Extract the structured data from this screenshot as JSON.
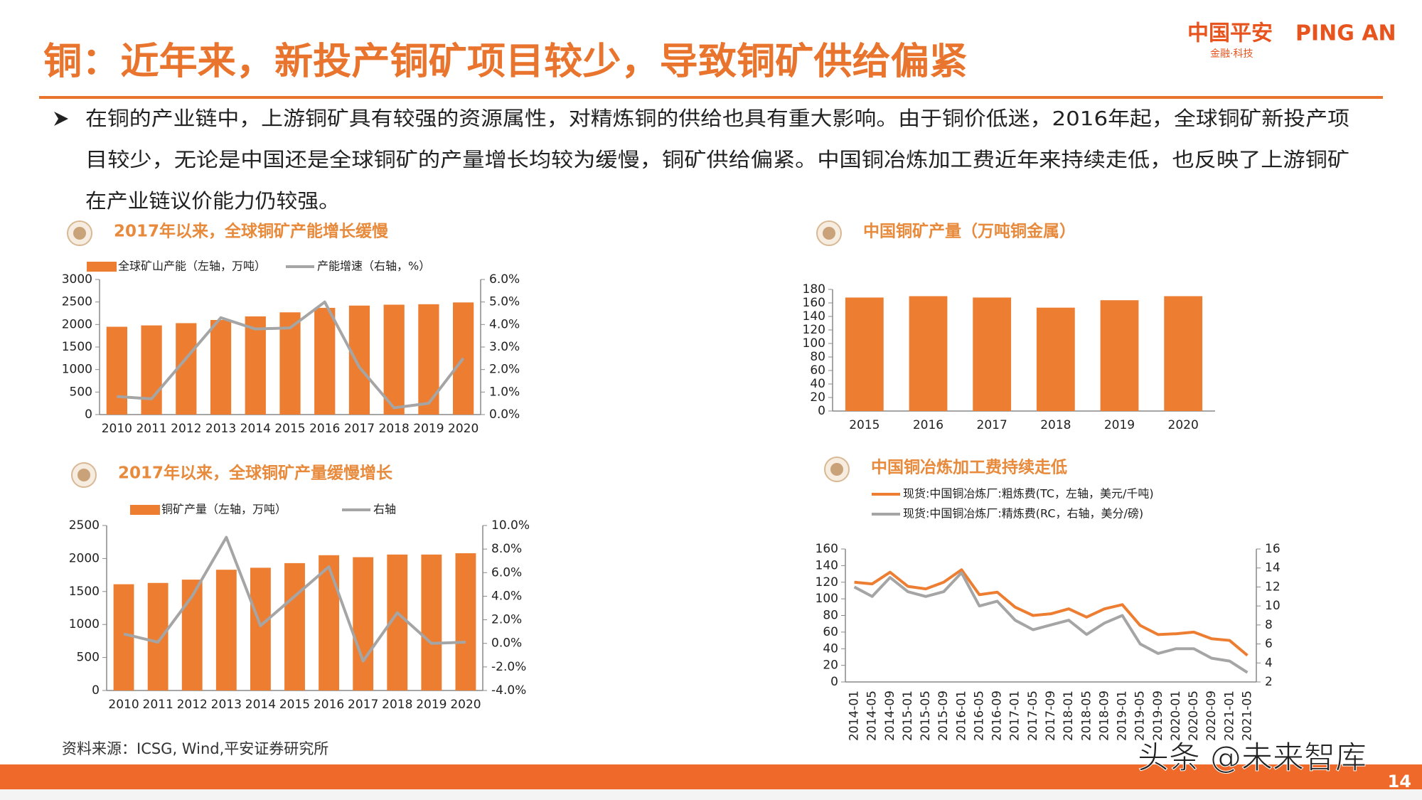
{
  "header": {
    "title": "铜：近年来，新投产铜矿项目较少，导致铜矿供给偏紧",
    "logo_cn": "中国平安",
    "logo_en": "PING AN",
    "logo_sub": "金融·科技"
  },
  "paragraph": {
    "lines": [
      "在铜的产业链中，上游铜矿具有较强的资源属性，对精炼铜的供给也具有重大影响。由于铜价低迷，2016年起，全球铜矿新投产项",
      "目较少，无论是中国还是全球铜矿的产量增长均较为缓慢，铜矿供给偏紧。中国铜冶炼加工费近年来持续走低，也反映了上游铜矿",
      "在产业链议价能力仍较强。"
    ]
  },
  "chart_data": [
    {
      "type": "bar",
      "title": "2017年以来，全球铜矿产能增长缓慢",
      "categories": [
        "2010",
        "2011",
        "2012",
        "2013",
        "2014",
        "2015",
        "2016",
        "2017",
        "2018",
        "2019",
        "2020"
      ],
      "series": [
        {
          "name": "全球矿山产能（左轴，万吨）",
          "color": "#ed7d31",
          "values": [
            1950,
            1980,
            2030,
            2100,
            2180,
            2270,
            2370,
            2420,
            2440,
            2450,
            2490
          ]
        },
        {
          "name": "产能增速（右轴，%）",
          "color": "#a5a5a5",
          "type": "line",
          "axis": "y2",
          "values": [
            0.8,
            0.7,
            2.5,
            4.3,
            3.8,
            3.85,
            5.0,
            2.1,
            0.3,
            0.5,
            2.5
          ]
        }
      ],
      "ylim": [
        0,
        3000
      ],
      "yticks": [
        0,
        500,
        1000,
        1500,
        2000,
        2500,
        3000
      ],
      "y2lim": [
        0,
        6
      ],
      "y2ticks": [
        {
          "value": 0,
          "label": "0.0%"
        },
        {
          "value": 1,
          "label": "1.0%"
        },
        {
          "value": 2,
          "label": "2.0%"
        },
        {
          "value": 3,
          "label": "3.0%"
        },
        {
          "value": 4,
          "label": "4.0%"
        },
        {
          "value": 5,
          "label": "5.0%"
        },
        {
          "value": 6,
          "label": "6.0%"
        }
      ]
    },
    {
      "type": "bar",
      "title": "中国铜矿产量（万吨铜金属）",
      "categories": [
        "2015",
        "2016",
        "2017",
        "2018",
        "2019",
        "2020"
      ],
      "values": [
        168,
        170,
        168,
        153,
        164,
        170
      ],
      "color": "#ed7d31",
      "ylim": [
        0,
        180
      ],
      "yticks": [
        0,
        20,
        40,
        60,
        80,
        100,
        120,
        140,
        160,
        180
      ]
    },
    {
      "type": "bar",
      "title": "2017年以来，全球铜矿产量缓慢增长",
      "categories": [
        "2010",
        "2011",
        "2012",
        "2013",
        "2014",
        "2015",
        "2016",
        "2017",
        "2018",
        "2019",
        "2020"
      ],
      "series": [
        {
          "name": "铜矿产量（左轴，万吨）",
          "color": "#ed7d31",
          "values": [
            1610,
            1630,
            1680,
            1830,
            1860,
            1930,
            2050,
            2020,
            2060,
            2060,
            2080
          ]
        },
        {
          "name": "右轴",
          "color": "#a5a5a5",
          "type": "line",
          "axis": "y2",
          "values": [
            0.8,
            0.1,
            4.0,
            9.0,
            1.5,
            4.0,
            6.5,
            -1.5,
            2.6,
            0.0,
            0.1
          ]
        }
      ],
      "ylim": [
        0,
        2500
      ],
      "yticks": [
        0,
        500,
        1000,
        1500,
        2000,
        2500
      ],
      "y2lim": [
        -4,
        10
      ],
      "y2ticks": [
        {
          "value": -4,
          "label": "-4.0%"
        },
        {
          "value": -2,
          "label": "-2.0%"
        },
        {
          "value": 0,
          "label": "0.0%"
        },
        {
          "value": 2,
          "label": "2.0%"
        },
        {
          "value": 4,
          "label": "4.0%"
        },
        {
          "value": 6,
          "label": "6.0%"
        },
        {
          "value": 8,
          "label": "8.0%"
        },
        {
          "value": 10,
          "label": "10.0%"
        }
      ]
    },
    {
      "type": "line",
      "title": "中国铜冶炼加工费持续走低",
      "categories": [
        "2014-01",
        "2014-05",
        "2014-09",
        "2015-01",
        "2015-05",
        "2015-09",
        "2016-01",
        "2016-05",
        "2016-09",
        "2017-01",
        "2017-05",
        "2017-09",
        "2018-01",
        "2018-05",
        "2018-09",
        "2019-01",
        "2019-05",
        "2019-09",
        "2020-01",
        "2020-05",
        "2020-09",
        "2021-01",
        "2021-05"
      ],
      "series": [
        {
          "name": "现货:中国铜冶炼厂:粗炼费(TC，左轴，美元/千吨)",
          "color": "#ed7d31",
          "values": [
            120,
            118,
            132,
            115,
            112,
            120,
            135,
            105,
            108,
            90,
            80,
            82,
            88,
            78,
            88,
            93,
            68,
            57,
            58,
            60,
            52,
            50,
            32
          ]
        },
        {
          "name": "现货:中国铜冶炼厂:精炼费(RC，右轴，美分/磅)",
          "color": "#a5a5a5",
          "axis": "y2",
          "values": [
            12,
            11,
            13,
            11.5,
            11,
            11.5,
            13.5,
            10,
            10.5,
            8.5,
            7.5,
            8,
            8.5,
            7,
            8.2,
            9,
            6,
            5,
            5.5,
            5.5,
            4.5,
            4.2,
            3
          ]
        }
      ],
      "ylim": [
        0,
        160
      ],
      "yticks": [
        0,
        20,
        40,
        60,
        80,
        100,
        120,
        140,
        160
      ],
      "y2lim": [
        2,
        16
      ],
      "y2ticks": [
        2,
        4,
        6,
        8,
        10,
        12,
        14,
        16
      ]
    }
  ],
  "source": "资料来源：ICSG, Wind,平安证券研究所",
  "watermark": "头条 @未来智库",
  "page_number": "14"
}
